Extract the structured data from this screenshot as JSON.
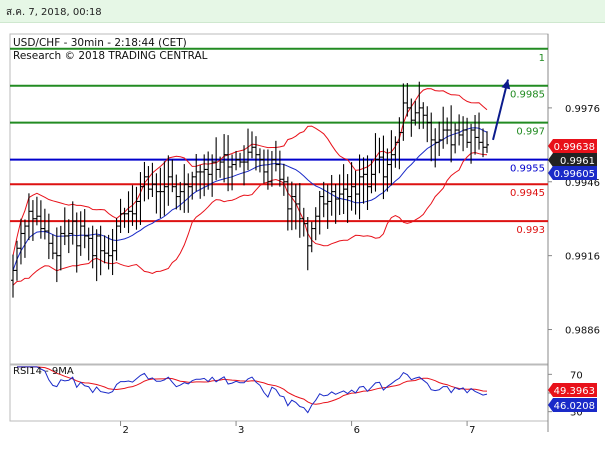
{
  "header": {
    "datetime": "ส.ค. 7, 2018, 00:18"
  },
  "chart_data": {
    "type": "candlestick",
    "title": "USD/CHF - 30min - 2:18:44 (CET)",
    "subtitle": "Research © 2018 TRADING CENTRAL",
    "price_axis": {
      "range": [
        0.9872,
        1.0006
      ],
      "ticks": [
        0.9976,
        0.9946,
        0.9916,
        0.9886
      ]
    },
    "x_labels": [
      {
        "label": "2",
        "index": 27
      },
      {
        "label": "3",
        "index": 56
      },
      {
        "label": "6",
        "index": 85
      },
      {
        "label": "7",
        "index": 114
      }
    ],
    "levels": [
      {
        "label": "1",
        "value": 1.0,
        "color": "#228b22"
      },
      {
        "label": "0.9985",
        "value": 0.9985,
        "color": "#228b22"
      },
      {
        "label": "0.997",
        "value": 0.997,
        "color": "#228b22"
      },
      {
        "label": "0.9955",
        "value": 0.9955,
        "color": "#0000cc"
      },
      {
        "label": "0.9945",
        "value": 0.9945,
        "color": "#dd1111"
      },
      {
        "label": "0.993",
        "value": 0.993,
        "color": "#dd1111"
      }
    ],
    "price_badges": [
      {
        "label": "0.99638",
        "value": 0.99638,
        "bg": "#e8111a",
        "fg": "#ffffff"
      },
      {
        "label": "0.9961",
        "value": 0.9961,
        "bg": "#222222",
        "fg": "#ffffff"
      },
      {
        "label": "0.99605",
        "value": 0.99605,
        "bg": "#1a2ac8",
        "fg": "#ffffff"
      }
    ],
    "close": [
      0.991,
      0.9919,
      0.9925,
      0.9928,
      0.9934,
      0.9931,
      0.9932,
      0.9927,
      0.9926,
      0.9921,
      0.9917,
      0.9916,
      0.9925,
      0.9924,
      0.9925,
      0.993,
      0.992,
      0.9928,
      0.9924,
      0.9923,
      0.9916,
      0.9924,
      0.9918,
      0.9917,
      0.9916,
      0.9918,
      0.9928,
      0.9933,
      0.9933,
      0.9934,
      0.9933,
      0.9938,
      0.9944,
      0.9948,
      0.9943,
      0.9945,
      0.9942,
      0.9942,
      0.9944,
      0.9948,
      0.9944,
      0.994,
      0.9942,
      0.9945,
      0.9944,
      0.9948,
      0.995,
      0.995,
      0.9951,
      0.9949,
      0.9954,
      0.9951,
      0.9954,
      0.9957,
      0.9952,
      0.9953,
      0.9955,
      0.9954,
      0.9954,
      0.9958,
      0.996,
      0.9957,
      0.9955,
      0.995,
      0.9946,
      0.9955,
      0.9953,
      0.9947,
      0.9946,
      0.9935,
      0.994,
      0.9937,
      0.9931,
      0.9929,
      0.992,
      0.9927,
      0.9932,
      0.994,
      0.9937,
      0.9938,
      0.9942,
      0.9939,
      0.9941,
      0.9943,
      0.994,
      0.9944,
      0.9941,
      0.9948,
      0.9949,
      0.9944,
      0.9949,
      0.9955,
      0.9956,
      0.9948,
      0.9953,
      0.9957,
      0.9962,
      0.9966,
      0.9978,
      0.9976,
      0.9971,
      0.9974,
      0.9976,
      0.9973,
      0.997,
      0.9963,
      0.9962,
      0.9963,
      0.9967,
      0.9967,
      0.9961,
      0.9967,
      0.9965,
      0.9967,
      0.9962,
      0.9967,
      0.9964,
      0.9962,
      0.996,
      0.9961
    ],
    "rsi": {
      "label": "RSI14 - 9MA",
      "range": [
        20,
        80
      ],
      "ticks": [
        70,
        50,
        30
      ],
      "rsi_value_label": "49.3963",
      "ma_value_label": "46.0208",
      "rsi_value": 49.3963,
      "ma_value": 46.0208,
      "rsi_color": "#1a2ac8",
      "ma_color": "#e8111a"
    },
    "colors": {
      "bars": "#000000",
      "bands": "#e8111a",
      "ma": "#1a2ac8",
      "arrow": "#0b1b8c"
    }
  }
}
